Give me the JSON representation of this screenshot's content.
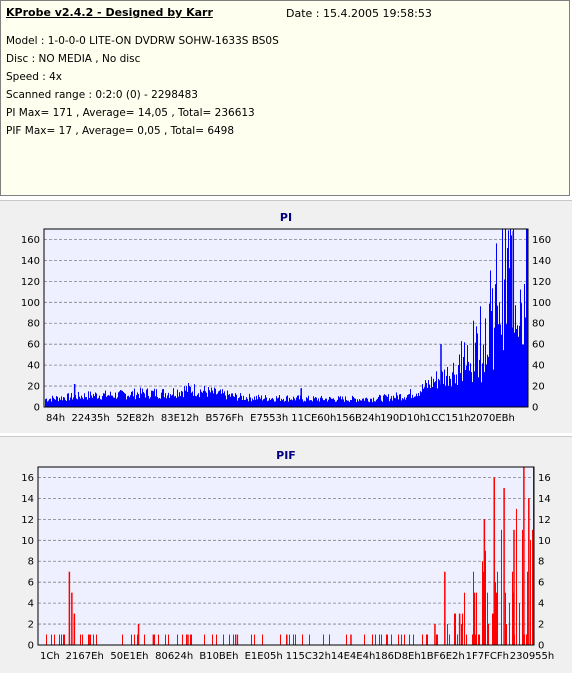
{
  "header": {
    "title": "KProbe v2.4.2 - Designed by Karr",
    "date": "Date : 15.4.2005 19:58:53",
    "lines": [
      "Model : 1-0-0-0 LITE-ON DVDRW SOHW-1633S BS0S",
      "Disc : NO MEDIA , No disc",
      "Speed : 4x",
      "Scanned range : 0:2:0 (0) - 2298483",
      "PI Max= 171 , Average= 14,05 , Total= 236613",
      "PIF Max= 17 , Average= 0,05 , Total= 6498"
    ]
  },
  "colors": {
    "pi": "#0000ff",
    "pif": "#ff0000",
    "title": "#000080",
    "plot_bg": "#eef0ff"
  },
  "chart_data": [
    {
      "type": "bar",
      "title": "PI",
      "x_tick_labels": [
        "84h",
        "22435h",
        "52E82h",
        "83E12h",
        "B576Fh",
        "E7553h",
        "11CE60h",
        "156B24h",
        "190D10h",
        "1CC151h",
        "2070EBh"
      ],
      "ylim": [
        0,
        170
      ],
      "y_ticks": [
        0,
        20,
        40,
        60,
        80,
        100,
        120,
        140,
        160
      ],
      "grid": true,
      "x_positions_normalized": [
        0,
        0.05,
        0.1,
        0.15,
        0.2,
        0.25,
        0.3,
        0.35,
        0.4,
        0.45,
        0.5,
        0.55,
        0.6,
        0.65,
        0.7,
        0.75,
        0.78,
        0.8,
        0.82,
        0.84,
        0.86,
        0.88,
        0.9,
        0.92,
        0.94,
        0.95,
        0.96,
        0.97,
        0.98,
        0.99,
        1.0
      ],
      "values_approx": [
        8,
        10,
        12,
        12,
        14,
        14,
        18,
        14,
        10,
        9,
        9,
        8,
        8,
        8,
        9,
        12,
        18,
        25,
        30,
        35,
        45,
        60,
        80,
        100,
        120,
        140,
        160,
        130,
        165,
        155,
        170
      ],
      "spikes": [
        {
          "x": 0.06,
          "value": 22
        },
        {
          "x": 0.53,
          "value": 18
        },
        {
          "x": 0.82,
          "value": 60
        },
        {
          "x": 0.97,
          "value": 168
        }
      ]
    },
    {
      "type": "bar",
      "title": "PIF",
      "x_tick_labels": [
        "1Ch",
        "2167Eh",
        "50E1Eh",
        "80624h",
        "B10BEh",
        "E1E05h",
        "115C32h",
        "14E4E4h",
        "186D8Eh",
        "1BF6E2h",
        "1F7FCFh",
        "230955h"
      ],
      "ylim": [
        0,
        17
      ],
      "y_ticks": [
        0,
        2,
        4,
        6,
        8,
        10,
        12,
        14,
        16
      ],
      "grid": true,
      "spikes": [
        {
          "x": 0.06,
          "value": 7
        },
        {
          "x": 0.065,
          "value": 5
        },
        {
          "x": 0.07,
          "value": 3
        },
        {
          "x": 0.1,
          "value": 1
        },
        {
          "x": 0.2,
          "value": 2
        },
        {
          "x": 0.23,
          "value": 1
        },
        {
          "x": 0.3,
          "value": 1
        },
        {
          "x": 0.4,
          "value": 1
        },
        {
          "x": 0.5,
          "value": 1
        },
        {
          "x": 0.63,
          "value": 1
        },
        {
          "x": 0.8,
          "value": 2
        },
        {
          "x": 0.82,
          "value": 7
        },
        {
          "x": 0.85,
          "value": 3
        },
        {
          "x": 0.88,
          "value": 5
        },
        {
          "x": 0.9,
          "value": 12
        },
        {
          "x": 0.92,
          "value": 16
        },
        {
          "x": 0.94,
          "value": 15
        },
        {
          "x": 0.96,
          "value": 11
        },
        {
          "x": 0.98,
          "value": 17
        },
        {
          "x": 0.99,
          "value": 14
        }
      ]
    }
  ]
}
